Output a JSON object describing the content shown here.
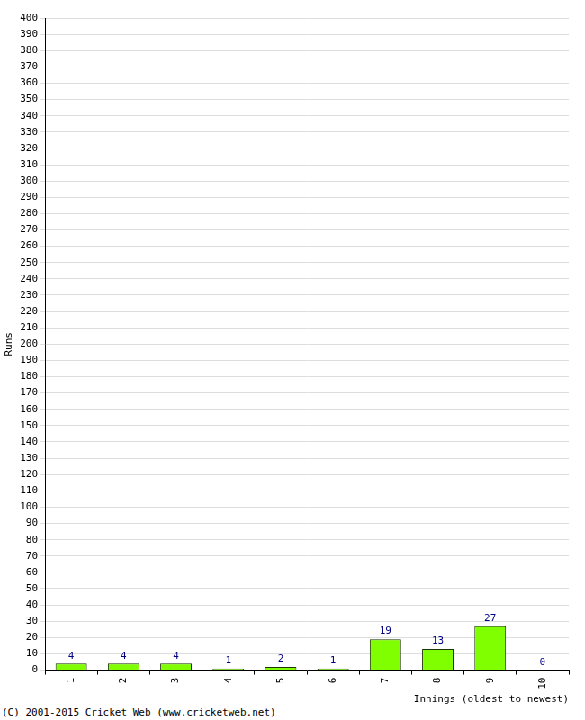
{
  "chart_data": {
    "type": "bar",
    "x_label": "Innings (oldest to newest)",
    "y_label": "Runs",
    "annotations": [
      "(C) 2001-2015 Cricket Web (www.cricketweb.net)"
    ],
    "categories": [
      "1",
      "2",
      "3",
      "4",
      "5",
      "6",
      "7",
      "8",
      "9",
      "10"
    ],
    "values": [
      4,
      4,
      4,
      1,
      2,
      1,
      19,
      13,
      27,
      0
    ],
    "color": "#80ff00",
    "ylim": [
      0,
      400
    ],
    "yticks": [
      0,
      10,
      20,
      30,
      40,
      50,
      60,
      70,
      80,
      90,
      100,
      110,
      120,
      130,
      140,
      150,
      160,
      170,
      180,
      190,
      200,
      210,
      220,
      230,
      240,
      250,
      260,
      270,
      280,
      290,
      300,
      310,
      320,
      330,
      340,
      350,
      360,
      370,
      380,
      390,
      400
    ],
    "grid": true,
    "data_labels": true
  }
}
